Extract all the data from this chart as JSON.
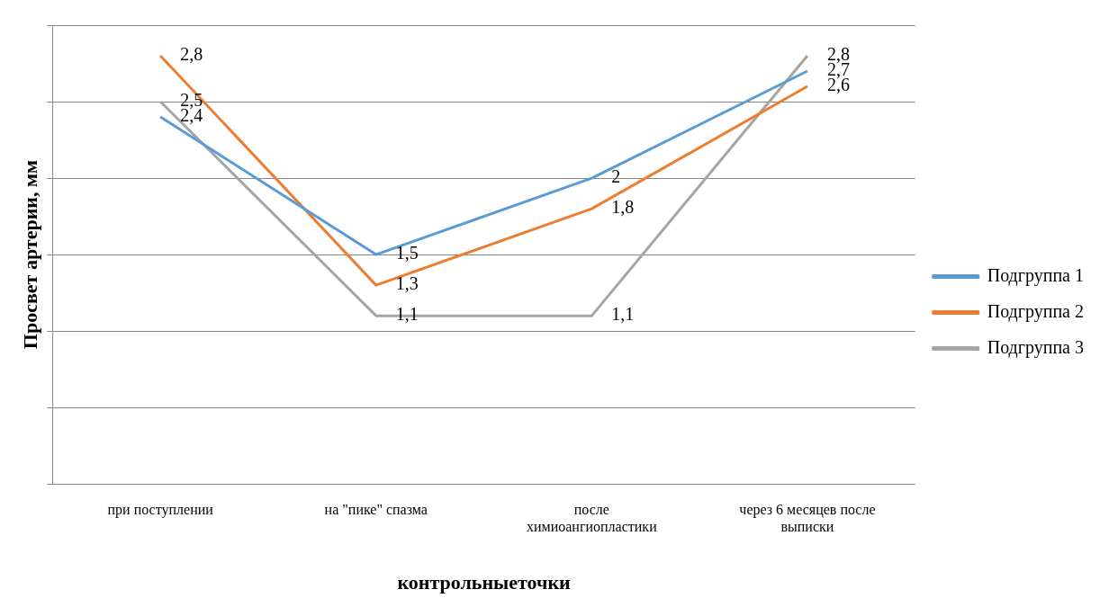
{
  "chart_data": {
    "type": "line",
    "xlabel": "контрольныеточки",
    "ylabel": "Просвет артерии, мм",
    "categories": [
      "при поступлении",
      "на \"пике\" спазма",
      "после химиоангиопластики",
      "через 6 месяцев после выписки"
    ],
    "series": [
      {
        "name": "Подгруппа 1",
        "color": "#5b9bd5",
        "values": [
          2.4,
          1.5,
          2,
          2.7
        ],
        "value_labels": [
          "2,4",
          "1,5",
          "2",
          "2,7"
        ]
      },
      {
        "name": "Подгруппа 2",
        "color": "#ed7d31",
        "values": [
          2.8,
          1.3,
          1.8,
          2.6
        ],
        "value_labels": [
          "2,8",
          "1,3",
          "1,8",
          "2,6"
        ]
      },
      {
        "name": "Подгруппа 3",
        "color": "#a5a5a5",
        "values": [
          2.5,
          1.1,
          1.1,
          2.8
        ],
        "value_labels": [
          "2,5",
          "1,1",
          "1,1",
          "2,8"
        ]
      }
    ],
    "ylim": [
      0,
      3
    ],
    "yticks": [
      {
        "value": 0,
        "label": null
      },
      {
        "value": 0.5,
        "label": null
      },
      {
        "value": 1,
        "label": null
      },
      {
        "value": 1.5,
        "label": null
      },
      {
        "value": 2,
        "label": null
      },
      {
        "value": 2.5,
        "label": null
      },
      {
        "value": 3,
        "label": null
      }
    ],
    "tick_labels": "x",
    "grid": "y",
    "legend": "right",
    "marker": "none",
    "line_style": "solid"
  }
}
